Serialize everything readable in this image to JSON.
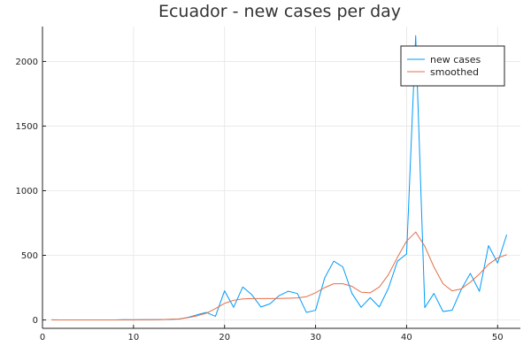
{
  "chart_data": {
    "type": "line",
    "title": "Ecuador - new cases per day",
    "xlabel": "",
    "ylabel": "",
    "xlim": [
      0,
      52.5
    ],
    "ylim": [
      -65,
      2270
    ],
    "x_ticks": [
      0,
      10,
      20,
      30,
      40,
      50
    ],
    "y_ticks": [
      0,
      500,
      1000,
      1500,
      2000
    ],
    "grid": true,
    "legend_position": "top-right",
    "series": [
      {
        "name": "new cases",
        "color": "#009AFA",
        "x": [
          1,
          2,
          3,
          4,
          5,
          6,
          7,
          8,
          9,
          10,
          11,
          12,
          13,
          14,
          15,
          16,
          17,
          18,
          19,
          20,
          21,
          22,
          23,
          24,
          25,
          26,
          27,
          28,
          29,
          30,
          31,
          32,
          33,
          34,
          35,
          36,
          37,
          38,
          39,
          40,
          41,
          42,
          43,
          44,
          45,
          46,
          47,
          48,
          49,
          50,
          51
        ],
        "values": [
          1,
          0,
          0,
          0,
          0,
          0,
          0,
          0,
          2,
          1,
          2,
          2,
          3,
          4,
          7,
          20,
          40,
          58,
          28,
          225,
          98,
          255,
          195,
          100,
          125,
          188,
          222,
          205,
          58,
          75,
          325,
          455,
          410,
          205,
          98,
          172,
          100,
          245,
          455,
          510,
          2200,
          95,
          205,
          65,
          75,
          235,
          360,
          222,
          575,
          440,
          660
        ]
      },
      {
        "name": "smoothed",
        "color": "#E26F46",
        "x": [
          1,
          2,
          3,
          4,
          5,
          6,
          7,
          8,
          9,
          10,
          11,
          12,
          13,
          14,
          15,
          16,
          17,
          18,
          19,
          20,
          21,
          22,
          23,
          24,
          25,
          26,
          27,
          28,
          29,
          30,
          31,
          32,
          33,
          34,
          35,
          36,
          37,
          38,
          39,
          40,
          41,
          42,
          43,
          44,
          45,
          46,
          47,
          48,
          49,
          50,
          51
        ],
        "values": [
          0,
          0,
          0,
          0,
          0,
          0,
          0,
          0,
          1,
          1,
          2,
          2,
          3,
          5,
          8,
          18,
          32,
          52,
          88,
          128,
          152,
          163,
          165,
          165,
          165,
          166,
          168,
          170,
          180,
          210,
          250,
          280,
          280,
          260,
          215,
          210,
          255,
          350,
          485,
          610,
          680,
          570,
          410,
          280,
          225,
          240,
          292,
          355,
          430,
          480,
          505
        ]
      }
    ]
  }
}
